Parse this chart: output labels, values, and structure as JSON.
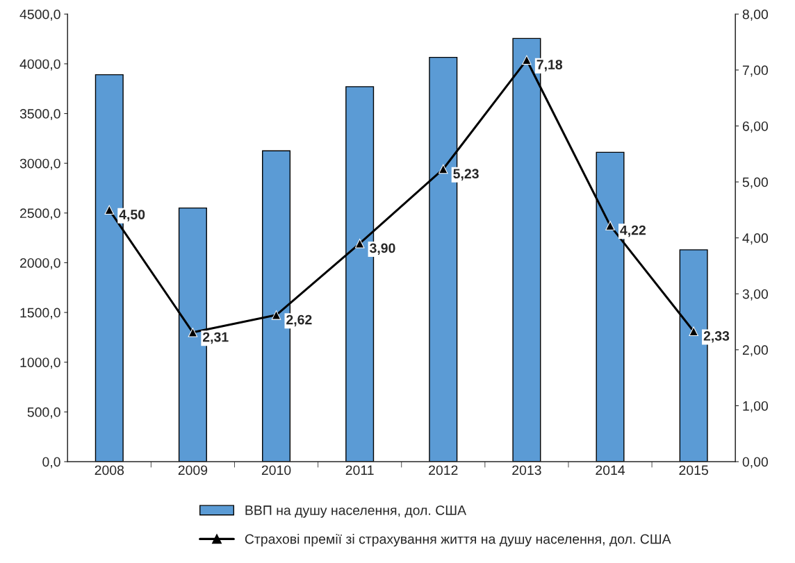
{
  "chart_data": {
    "type": "bar",
    "categories": [
      "2008",
      "2009",
      "2010",
      "2011",
      "2012",
      "2013",
      "2014",
      "2015"
    ],
    "series": [
      {
        "name": "ВВП на душу населення, дол. США",
        "color": "#5b9bd5",
        "values": [
          3890,
          2550,
          3125,
          3770,
          4065,
          4255,
          3110,
          2130
        ]
      },
      {
        "name": "Страхові премії зі страхування життя на душу населення, дол. США",
        "type": "line",
        "axis": "y2",
        "color": "#000000",
        "marker": "triangle",
        "line_style": "solid",
        "values": [
          4.5,
          2.31,
          2.62,
          3.9,
          5.23,
          7.18,
          4.22,
          2.33
        ],
        "value_labels": [
          "4,50",
          "2,31",
          "2,62",
          "3,90",
          "5,23",
          "7,18",
          "4,22",
          "2,33"
        ]
      }
    ],
    "ylim": [
      0,
      4500
    ],
    "yticks": [
      {
        "value": 0,
        "label": "0,0"
      },
      {
        "value": 500,
        "label": "500,0"
      },
      {
        "value": 1000,
        "label": "1000,0"
      },
      {
        "value": 1500,
        "label": "1500,0"
      },
      {
        "value": 2000,
        "label": "2000,0"
      },
      {
        "value": 2500,
        "label": "2500,0"
      },
      {
        "value": 3000,
        "label": "3000,0"
      },
      {
        "value": 3500,
        "label": "3500,0"
      },
      {
        "value": 4000,
        "label": "4000,0"
      },
      {
        "value": 4500,
        "label": "4500,0"
      }
    ],
    "y2lim": [
      0,
      8
    ],
    "y2ticks": [
      {
        "value": 0,
        "label": "0,00"
      },
      {
        "value": 1,
        "label": "1,00"
      },
      {
        "value": 2,
        "label": "2,00"
      },
      {
        "value": 3,
        "label": "3,00"
      },
      {
        "value": 4,
        "label": "4,00"
      },
      {
        "value": 5,
        "label": "5,00"
      },
      {
        "value": 6,
        "label": "6,00"
      },
      {
        "value": 7,
        "label": "7,00"
      },
      {
        "value": 8,
        "label": "8,00"
      }
    ],
    "grid": false,
    "legend": "bottom"
  }
}
